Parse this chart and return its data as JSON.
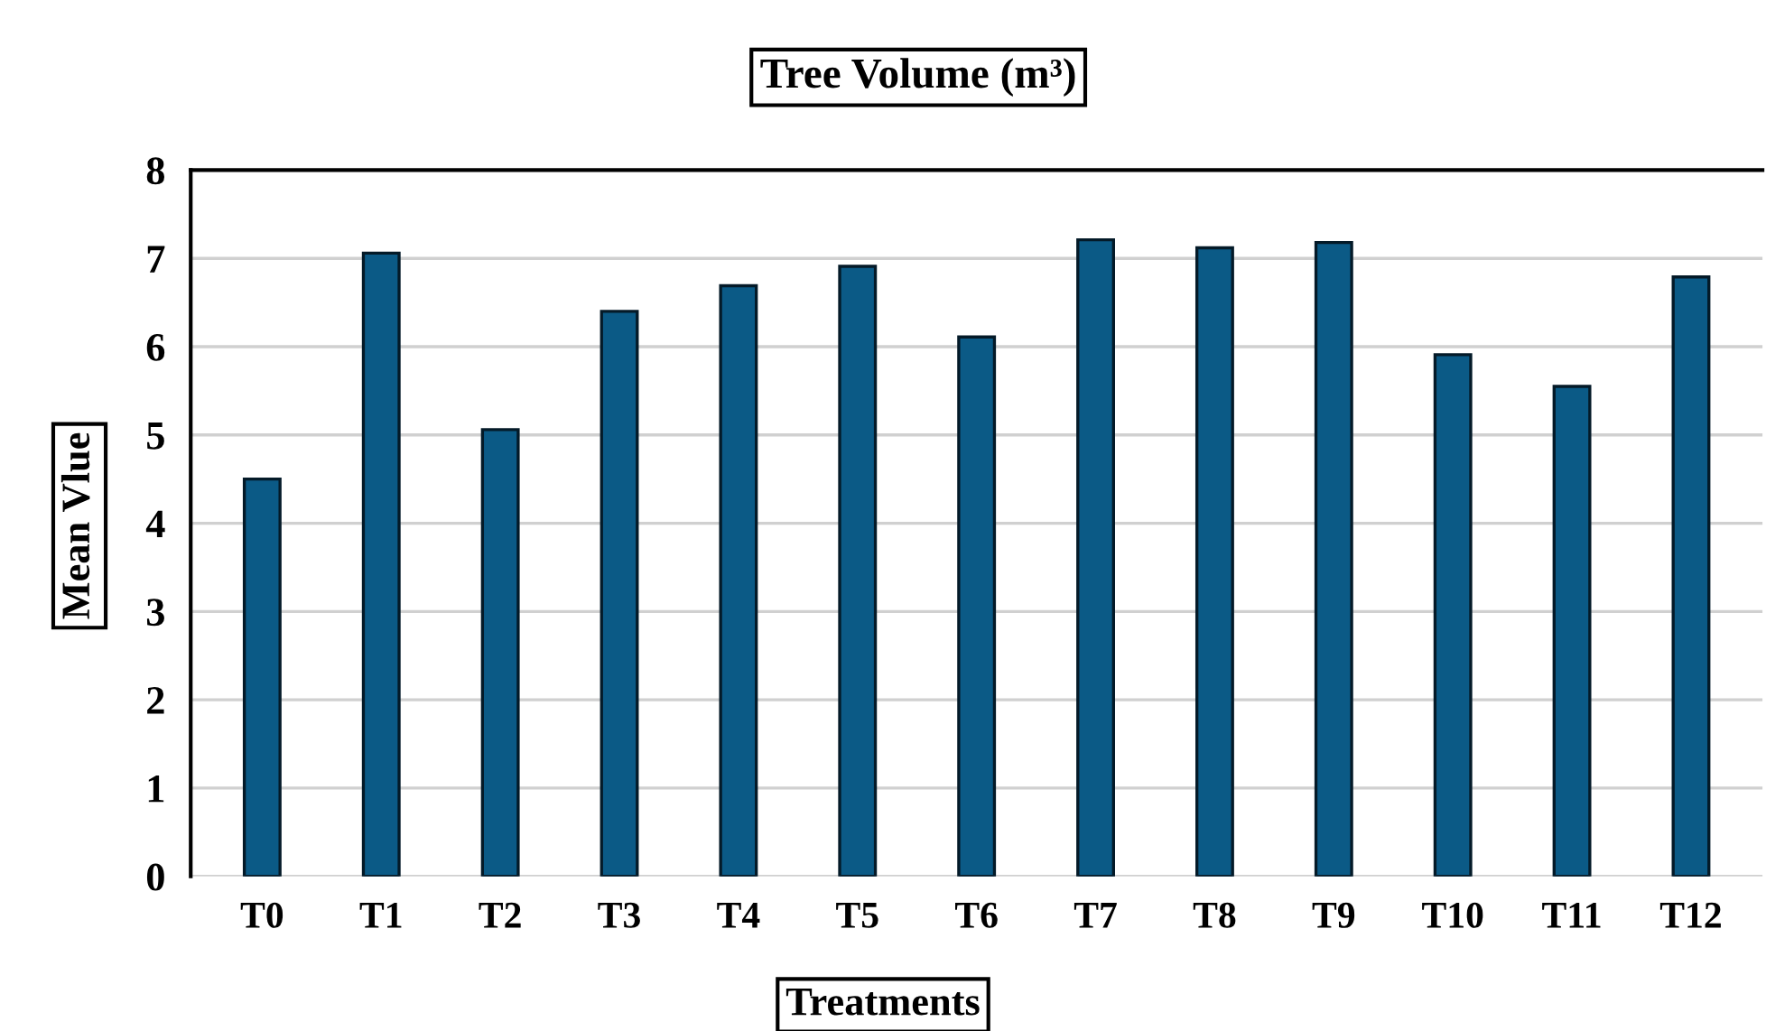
{
  "chart_data": {
    "type": "bar",
    "title": "Tree Volume (m³)",
    "xlabel": "Treatments",
    "ylabel": "Mean Vlue",
    "categories": [
      "T0",
      "T1",
      "T2",
      "T3",
      "T4",
      "T5",
      "T6",
      "T7",
      "T8",
      "T9",
      "T10",
      "T11",
      "T12"
    ],
    "values": [
      4.5,
      7.06,
      5.06,
      6.4,
      6.69,
      6.91,
      6.11,
      7.21,
      7.12,
      7.18,
      5.91,
      5.55,
      6.79
    ],
    "color": "#0b5a86",
    "ylim": [
      0,
      8
    ],
    "yticks": [
      0,
      1,
      2,
      3,
      4,
      5,
      6,
      7,
      8
    ],
    "grid": "y"
  }
}
